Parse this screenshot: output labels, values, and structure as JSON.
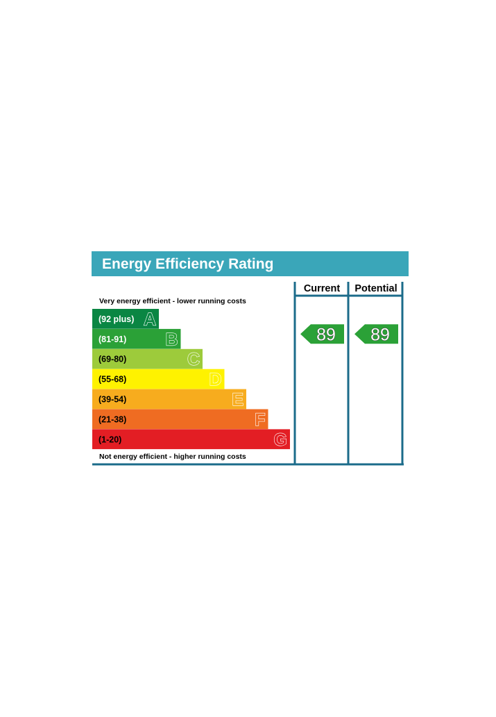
{
  "chart_data": {
    "type": "bar",
    "title": "Energy Efficiency Rating",
    "column_headers": {
      "current": "Current",
      "potential": "Potential"
    },
    "top_note": "Very energy efficient - lower running costs",
    "bottom_note": "Not energy efficient - higher running costs",
    "bands": [
      {
        "range": "(92 plus)",
        "letter": "A",
        "color": "#0a8643",
        "text_color": "#ffffff"
      },
      {
        "range": "(81-91)",
        "letter": "B",
        "color": "#2ba137",
        "text_color": "#ffffff"
      },
      {
        "range": "(69-80)",
        "letter": "C",
        "color": "#9dcb3b",
        "text_color": "#000000"
      },
      {
        "range": "(55-68)",
        "letter": "D",
        "color": "#fef200",
        "text_color": "#000000"
      },
      {
        "range": "(39-54)",
        "letter": "E",
        "color": "#f7ac1e",
        "text_color": "#000000"
      },
      {
        "range": "(21-38)",
        "letter": "F",
        "color": "#ef6c22",
        "text_color": "#000000"
      },
      {
        "range": "(1-20)",
        "letter": "G",
        "color": "#e31e24",
        "text_color": "#000000"
      }
    ],
    "current": {
      "value": 89,
      "band": "B",
      "color": "#2ba137"
    },
    "potential": {
      "value": 89,
      "band": "B",
      "color": "#2ba137"
    },
    "colors": {
      "title_bar": "#3aa6b9",
      "frame": "#1b6b8a"
    }
  }
}
